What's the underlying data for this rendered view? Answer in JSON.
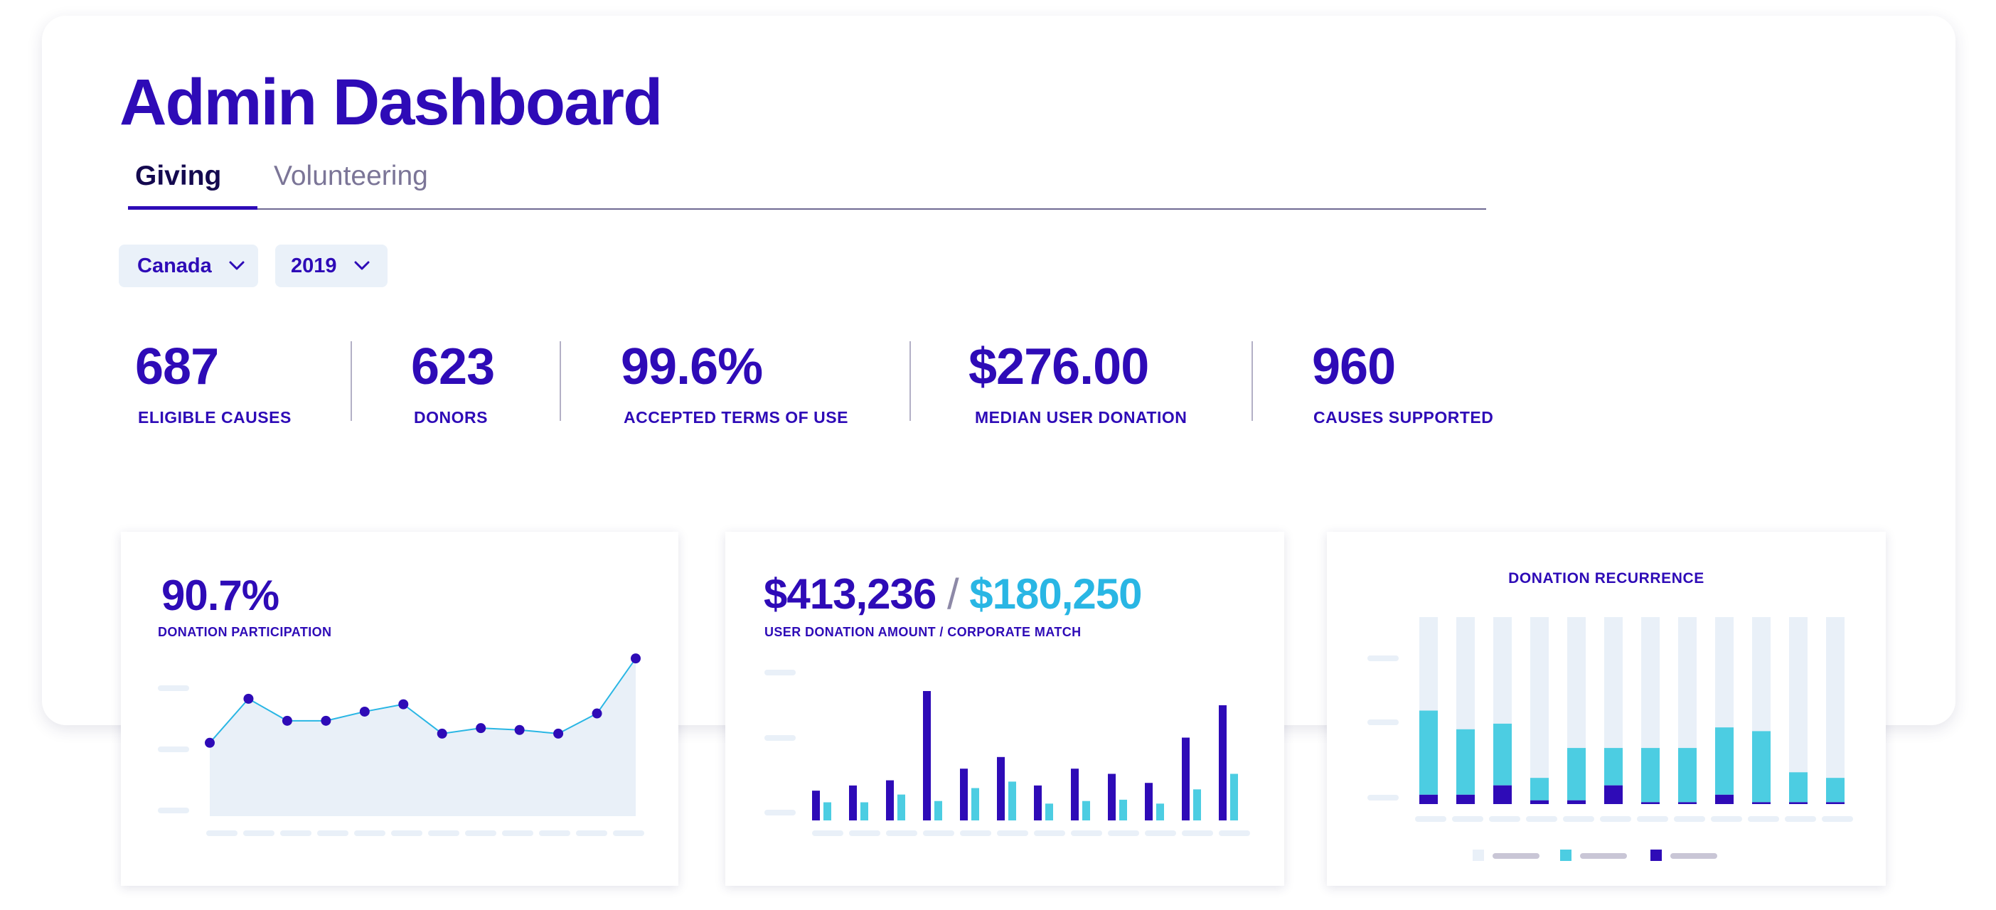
{
  "title": "Admin Dashboard",
  "tabs": [
    {
      "label": "Giving",
      "active": true
    },
    {
      "label": "Volunteering",
      "active": false
    }
  ],
  "filters": {
    "country": "Canada",
    "year": "2019"
  },
  "stats": [
    {
      "value": "687",
      "label": "ELIGIBLE CAUSES"
    },
    {
      "value": "623",
      "label": "DONORS"
    },
    {
      "value": "99.6%",
      "label": "ACCEPTED TERMS OF USE"
    },
    {
      "value": "$276.00",
      "label": "MEDIAN USER DONATION"
    },
    {
      "value": "960",
      "label": "CAUSES SUPPORTED"
    }
  ],
  "cards": {
    "participation": {
      "value": "90.7%",
      "label": "DONATION PARTICIPATION"
    },
    "amounts": {
      "user_amount": "$413,236",
      "separator": "/",
      "corporate_match": "$180,250",
      "label": "USER DONATION AMOUNT / CORPORATE MATCH"
    },
    "recurrence": {
      "title": "DONATION RECURRENCE"
    }
  },
  "colors": {
    "primary": "#2e0bb7",
    "accent": "#29b6e4",
    "cyan": "#4ccde2",
    "light": "#e9f0f8",
    "muted": "#c9c6d6"
  },
  "chart_data": [
    {
      "type": "area",
      "values": [
        40,
        64,
        52,
        52,
        57,
        61,
        45,
        48,
        47,
        45,
        56,
        86
      ],
      "ylim": [
        0,
        100
      ]
    },
    {
      "type": "bar",
      "series": [
        {
          "values": [
            23,
            27,
            31,
            100,
            40,
            49,
            27,
            40,
            36,
            29,
            64,
            89
          ]
        },
        {
          "values": [
            14,
            14,
            20,
            15,
            25,
            30,
            13,
            15,
            16,
            13,
            24,
            36
          ]
        }
      ],
      "ylim": [
        0,
        100
      ]
    },
    {
      "type": "bar",
      "stacked": true,
      "series": [
        {
          "values": [
            5,
            5,
            10,
            2,
            2,
            10,
            1,
            1,
            5,
            1,
            1,
            1
          ]
        },
        {
          "values": [
            45,
            35,
            33,
            12,
            28,
            20,
            29,
            29,
            36,
            38,
            16,
            13
          ]
        }
      ],
      "ylim": [
        0,
        100
      ]
    }
  ]
}
